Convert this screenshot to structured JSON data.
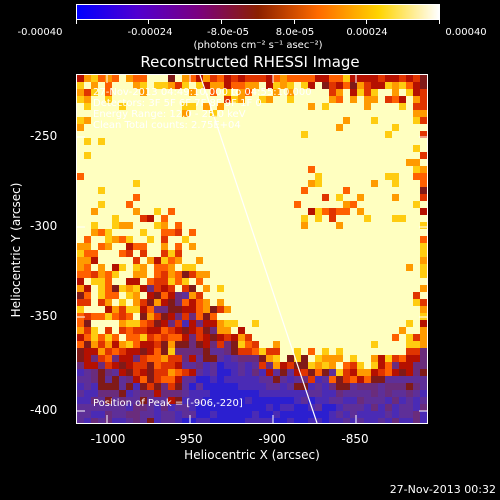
{
  "colorbar": {
    "tick_labels": [
      "-0.00040",
      "-0.00024",
      "-8.0e-05",
      "8.0e-05",
      "0.00024",
      "0.00040"
    ],
    "units": "(photons cm⁻² s⁻¹ asec⁻²)",
    "colors": [
      "#0000ff",
      "#5000d0",
      "#7a0080",
      "#8b2000",
      "#ff6a00",
      "#ffd400",
      "#ffffff"
    ]
  },
  "title": "Reconstructed RHESSI Image",
  "overlay": {
    "time_line": "27-Nov-2013 04:49:10.000 to 04:55:10.000",
    "detectors_line": "Detectors: 3F 5F 6F 7F 8F 9F 1F 0",
    "energy_line": "Energy Range: 12.0 - 25.0 keV",
    "clean_line": "Clean    Total counts: 2.75E+04",
    "peak_line": "Position of Peak = [-906,-220]"
  },
  "axes": {
    "x_label": "Heliocentric X (arcsec)",
    "y_label": "Heliocentric Y (arcsec)",
    "x_ticks": [
      "-1000",
      "-950",
      "-900",
      "-850"
    ],
    "y_ticks": [
      "-250",
      "-300",
      "-350",
      "-400"
    ],
    "x_range": [
      -1012,
      -823
    ],
    "y_range": [
      -406,
      -218
    ]
  },
  "limb_line_color": "#ffffff",
  "timestamp": "27-Nov-2013 00:32"
}
